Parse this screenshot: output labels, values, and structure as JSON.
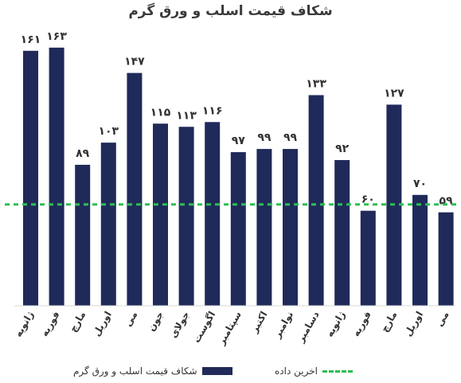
{
  "chart_data": {
    "type": "bar",
    "title": "شکاف قیمت اسلب و ورق گرم",
    "xlabel": "",
    "ylabel": "",
    "categories": [
      "ژانویه",
      "فوریه",
      "مارچ",
      "اوریل",
      "می",
      "جون",
      "جولای",
      "اگوست",
      "سپتامبر",
      "اکتبر",
      "نوامبر",
      "دسامبر",
      "ژانویه",
      "فوریه",
      "مارچ",
      "اوریل",
      "می"
    ],
    "series": [
      {
        "name": "شکاف قیمت اسلب و ورق گرم",
        "values": [
          161,
          163,
          89,
          103,
          147,
          115,
          113,
          116,
          97,
          99,
          99,
          133,
          92,
          60,
          127,
          70,
          59
        ]
      }
    ],
    "data_labels": [
      "۱۶۱",
      "۱۶۳",
      "۸۹",
      "۱۰۳",
      "۱۴۷",
      "۱۱۵",
      "۱۱۳",
      "۱۱۶",
      "۹۷",
      "۹۹",
      "۹۹",
      "۱۳۳",
      "۹۲",
      "۶۰",
      "۱۲۷",
      "۷۰",
      "۵۹"
    ],
    "reference_line": {
      "name": "اخرین داده",
      "value": 64
    },
    "ylim": [
      0,
      180
    ],
    "grid": false,
    "legend_position": "bottom",
    "colors": {
      "bar": "#1f2a5a",
      "reference": "#2cbf54",
      "text": "#333333"
    }
  }
}
